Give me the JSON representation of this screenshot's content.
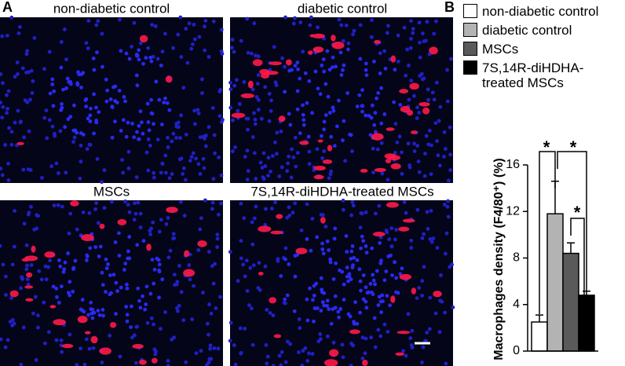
{
  "panel_labels": [
    "A",
    "B"
  ],
  "images": [
    {
      "title": "non-diabetic control"
    },
    {
      "title": "diabetic control"
    },
    {
      "title": "MSCs"
    },
    {
      "title": "7S,14R-diHDHA-treated MSCs"
    }
  ],
  "chart_data": {
    "type": "bar",
    "y_label": "Macrophages density (F4/80⁺) (%)",
    "categories": [
      "non-diabetic control",
      "diabetic control",
      "MSCs",
      "7S,14R-diHDHA-treated MSCs"
    ],
    "values": [
      2.5,
      11.8,
      8.4,
      4.8
    ],
    "errors": [
      0.6,
      2.8,
      0.9,
      0.35
    ],
    "colors": [
      "#ffffff",
      "#b3b3b3",
      "#5a5a5a",
      "#000000"
    ],
    "ylim": [
      0,
      16
    ],
    "yticks": [
      0,
      4,
      8,
      12,
      16
    ],
    "annotations": [
      "*",
      "*",
      "*"
    ]
  }
}
